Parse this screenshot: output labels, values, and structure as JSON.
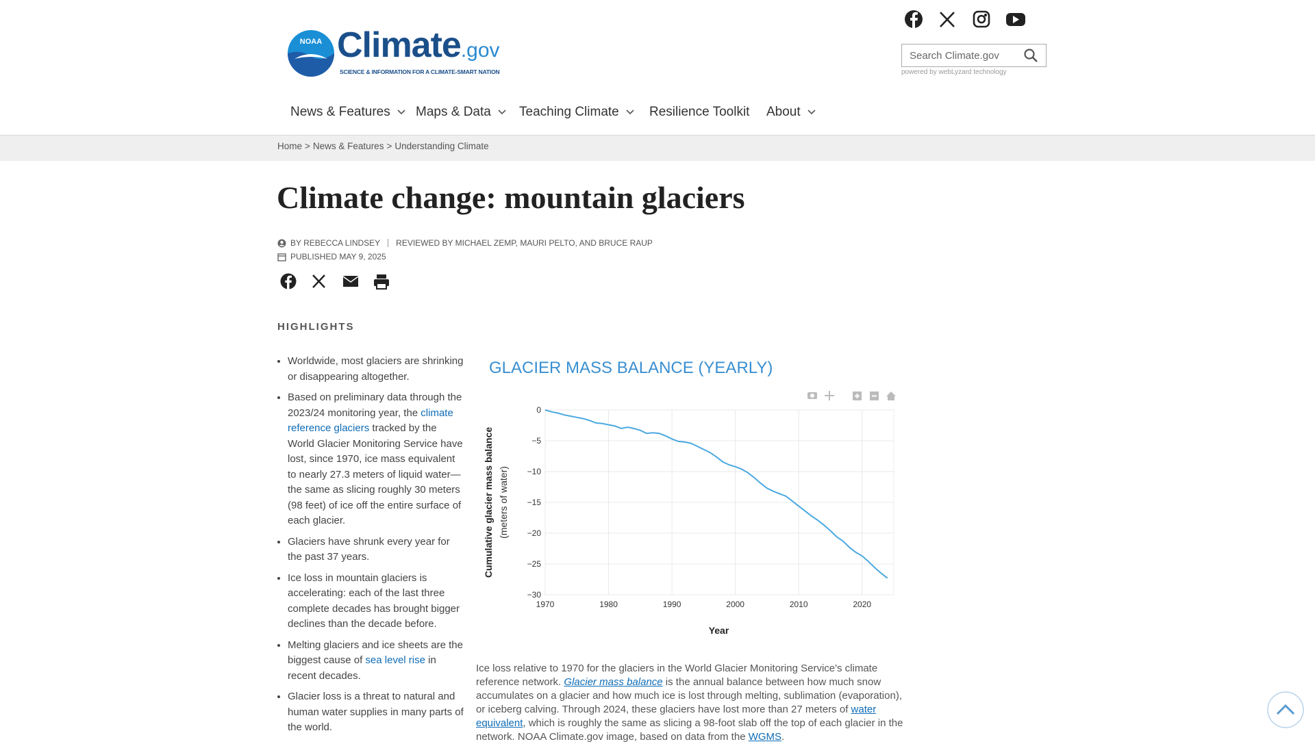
{
  "header": {
    "logo": {
      "badge": "NOAA",
      "name": "Climate",
      "suffix": ".gov",
      "tagline": "SCIENCE & INFORMATION FOR A CLIMATE-SMART NATION"
    },
    "search": {
      "placeholder": "Search Climate.gov",
      "powered_by": "powered by webLyzard technology"
    }
  },
  "nav": [
    "News & Features",
    "Maps & Data",
    "Teaching Climate",
    "Resilience Toolkit",
    "About"
  ],
  "breadcrumb": {
    "items": [
      "Home",
      "News & Features",
      "Understanding Climate"
    ],
    "separator": ">"
  },
  "article": {
    "title": "Climate change: mountain glaciers",
    "byline": "BY REBECCA LINDSEY",
    "reviewers": "REVIEWED BY MICHAEL ZEMP, MAURI PELTO, AND BRUCE RAUP",
    "published": "PUBLISHED MAY 9, 2025",
    "highlights_heading": "HIGHLIGHTS",
    "highlights": [
      [
        {
          "text": "Worldwide, most glaciers are shrinking or disappearing altogether."
        }
      ],
      [
        {
          "text": "Based on preliminary data through the 2023/24 monitoring year, the "
        },
        {
          "text": "climate reference glaciers",
          "link": true
        },
        {
          "text": " tracked by the World Glacier Monitoring Service have lost, since 1970, ice mass equivalent to nearly 27.3 meters of liquid water—the same as slicing roughly 30 meters (98 feet) of ice off the entire surface of each glacier."
        }
      ],
      [
        {
          "text": "Glaciers have shrunk every year for the past 37 years."
        }
      ],
      [
        {
          "text": "Ice loss in mountain glaciers is accelerating: each of the last three complete decades has brought bigger declines than the decade before."
        }
      ],
      [
        {
          "text": "Melting glaciers and ice sheets are the biggest cause of "
        },
        {
          "text": "sea level rise",
          "link": true
        },
        {
          "text": " in recent decades."
        }
      ],
      [
        {
          "text": "Glacier loss is a threat to natural and human water supplies in many parts of the world."
        }
      ]
    ],
    "caption": [
      {
        "text": "Ice loss relative to 1970 for the glaciers in the World Glacier Monitoring Service's climate reference network. "
      },
      {
        "text": "Glacier mass balance",
        "link": true,
        "italic": true
      },
      {
        "text": " is the annual balance between how much snow accumulates on a glacier and how much ice is lost through melting, sublimation (evaporation), or iceberg calving. Through 2024, these glaciers have lost more than 27 meters of "
      },
      {
        "text": "water equivalent",
        "link": true
      },
      {
        "text": ", which is roughly the same as slicing a 98-foot slab off the top of each glacier in the network. NOAA Climate.gov image, based on data from the "
      },
      {
        "text": "WGMS",
        "link": true
      },
      {
        "text": "."
      }
    ]
  },
  "chart_data": {
    "type": "line",
    "title": "GLACIER MASS BALANCE (YEARLY)",
    "x_label": "Year",
    "y_label": "Cumulative glacier mass balance",
    "y_sublabel": "(meters of water)",
    "color": "#4aa8e0",
    "grid": true,
    "x": [
      1970,
      1971,
      1972,
      1973,
      1974,
      1975,
      1976,
      1977,
      1978,
      1979,
      1980,
      1981,
      1982,
      1983,
      1984,
      1985,
      1986,
      1987,
      1988,
      1989,
      1990,
      1991,
      1992,
      1993,
      1994,
      1995,
      1996,
      1997,
      1998,
      1999,
      2000,
      2001,
      2002,
      2003,
      2004,
      2005,
      2006,
      2007,
      2008,
      2009,
      2010,
      2011,
      2012,
      2013,
      2014,
      2015,
      2016,
      2017,
      2018,
      2019,
      2020,
      2021,
      2022,
      2023,
      2024
    ],
    "values": [
      0,
      -0.3,
      -0.5,
      -0.8,
      -1.0,
      -1.2,
      -1.4,
      -1.7,
      -2.1,
      -2.2,
      -2.4,
      -2.6,
      -3.0,
      -2.8,
      -3.0,
      -3.3,
      -3.8,
      -3.7,
      -3.8,
      -4.2,
      -4.7,
      -5.1,
      -5.2,
      -5.4,
      -5.9,
      -6.4,
      -6.9,
      -7.6,
      -8.4,
      -8.9,
      -9.2,
      -9.6,
      -10.2,
      -11.0,
      -11.9,
      -12.7,
      -13.2,
      -13.6,
      -14.0,
      -14.8,
      -15.6,
      -16.4,
      -17.2,
      -17.9,
      -18.7,
      -19.6,
      -20.6,
      -21.3,
      -22.3,
      -23.1,
      -23.7,
      -24.6,
      -25.6,
      -26.5,
      -27.3
    ],
    "xlim": [
      1970,
      2025
    ],
    "ylim": [
      -30,
      0
    ],
    "xticks": [
      1970,
      1980,
      1990,
      2000,
      2010,
      2020
    ],
    "yticks": [
      0,
      {
        "value": -5,
        "label": "−5"
      },
      {
        "value": -10,
        "label": "−10"
      },
      {
        "value": -15,
        "label": "−15"
      },
      {
        "value": -20,
        "label": "−20"
      },
      {
        "value": -25,
        "label": "−25"
      },
      {
        "value": -30,
        "label": "−30"
      }
    ]
  }
}
